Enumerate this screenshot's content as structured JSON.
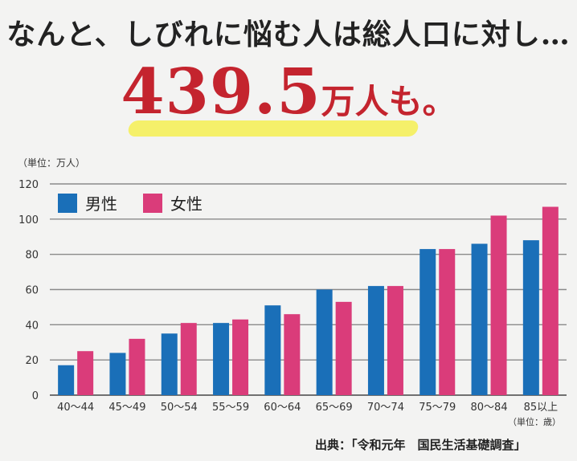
{
  "headline": "なんと、しびれに悩む人は総人口に対し…",
  "big_number": "439.5",
  "big_number_unit": "万人も。",
  "unit_label": "（単位：万人）",
  "age_unit_label": "（単位：歳）",
  "source": "出典：「令和元年　国民生活基礎調査」",
  "colors": {
    "male": "#1a6fb8",
    "female": "#da3c7a"
  },
  "chart_data": {
    "type": "bar",
    "categories": [
      "40〜44",
      "45〜49",
      "50〜54",
      "55〜59",
      "60〜64",
      "65〜69",
      "70〜74",
      "75〜79",
      "80〜84",
      "85以上"
    ],
    "series": [
      {
        "name": "男性",
        "values": [
          17,
          24,
          35,
          41,
          51,
          60,
          62,
          83,
          86,
          88
        ]
      },
      {
        "name": "女性",
        "values": [
          25,
          32,
          41,
          43,
          46,
          53,
          62,
          83,
          102,
          107
        ]
      }
    ],
    "ylim": [
      0,
      120
    ],
    "yticks": [
      0,
      20,
      40,
      60,
      80,
      100,
      120
    ],
    "grid": true,
    "legend": "top-left"
  }
}
